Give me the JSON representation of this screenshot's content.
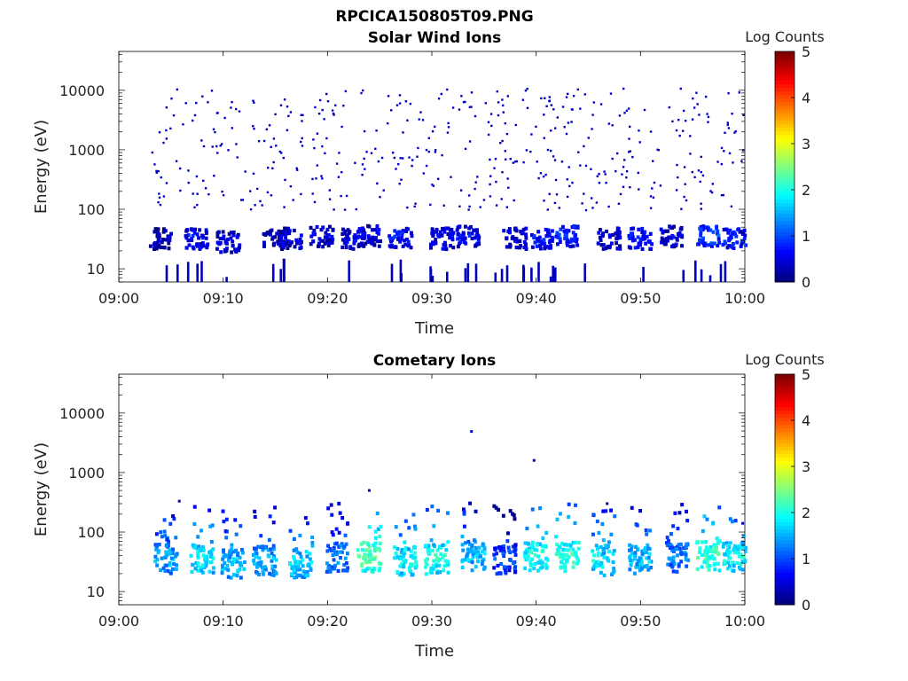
{
  "figure_title": "RPCICA150805T09.PNG",
  "colorbar": {
    "label": "Log Counts",
    "ticks": [
      "0",
      "1",
      "2",
      "3",
      "4",
      "5"
    ],
    "range": [
      0,
      5
    ],
    "colormap": "jet"
  },
  "chart_data": [
    {
      "type": "heatmap",
      "title": "Solar Wind Ions",
      "xlabel": "Time",
      "ylabel": "Energy (eV)",
      "yscale": "log",
      "xlim": [
        "09:00",
        "10:00"
      ],
      "ylim": [
        6,
        45000
      ],
      "x_ticks": [
        "09:00",
        "09:10",
        "09:20",
        "09:30",
        "09:40",
        "09:50",
        "10:00"
      ],
      "y_ticks": [
        "10",
        "100",
        "1000",
        "10000"
      ],
      "blobs": [
        {
          "t": "09:04",
          "e": 32,
          "level": 0.6
        },
        {
          "t": "09:07.5",
          "e": 32,
          "level": 0.9
        },
        {
          "t": "09:10.5",
          "e": 28,
          "level": 0.7
        },
        {
          "t": "09:15",
          "e": 32,
          "level": 0.6
        },
        {
          "t": "09:16.5",
          "e": 32,
          "level": 0.8
        },
        {
          "t": "09:19.5",
          "e": 35,
          "level": 0.8
        },
        {
          "t": "09:22.5",
          "e": 32,
          "level": 0.8
        },
        {
          "t": "09:24",
          "e": 35,
          "level": 0.8
        },
        {
          "t": "09:27",
          "e": 32,
          "level": 1.0
        },
        {
          "t": "09:31",
          "e": 32,
          "level": 0.8
        },
        {
          "t": "09:33.5",
          "e": 35,
          "level": 0.9
        },
        {
          "t": "09:38",
          "e": 32,
          "level": 0.8
        },
        {
          "t": "09:40.5",
          "e": 32,
          "level": 1.0
        },
        {
          "t": "09:43",
          "e": 35,
          "level": 1.1
        },
        {
          "t": "09:47",
          "e": 32,
          "level": 0.8
        },
        {
          "t": "09:50",
          "e": 32,
          "level": 1.0
        },
        {
          "t": "09:53",
          "e": 35,
          "level": 0.8
        },
        {
          "t": "09:56.5",
          "e": 35,
          "level": 1.2
        },
        {
          "t": "09:59",
          "e": 32,
          "level": 1.0
        }
      ]
    },
    {
      "type": "heatmap",
      "title": "Cometary Ions",
      "xlabel": "Time",
      "ylabel": "Energy (eV)",
      "yscale": "log",
      "xlim": [
        "09:00",
        "10:00"
      ],
      "ylim": [
        6,
        45000
      ],
      "x_ticks": [
        "09:00",
        "09:10",
        "09:20",
        "09:30",
        "09:40",
        "09:50",
        "10:00"
      ],
      "y_ticks": [
        "10",
        "100",
        "1000",
        "10000"
      ],
      "blobs": [
        {
          "t": "09:04.5",
          "e": 35,
          "level": 1.8
        },
        {
          "t": "09:08",
          "e": 35,
          "level": 2.1
        },
        {
          "t": "09:11",
          "e": 30,
          "level": 1.9
        },
        {
          "t": "09:14",
          "e": 33,
          "level": 1.8
        },
        {
          "t": "09:17.5",
          "e": 30,
          "level": 2.0
        },
        {
          "t": "09:21",
          "e": 38,
          "level": 1.6
        },
        {
          "t": "09:24",
          "e": 38,
          "level": 2.6
        },
        {
          "t": "09:27.5",
          "e": 33,
          "level": 2.2
        },
        {
          "t": "09:30.5",
          "e": 35,
          "level": 2.3
        },
        {
          "t": "09:34",
          "e": 40,
          "level": 1.9
        },
        {
          "t": "09:37",
          "e": 35,
          "level": 1.3
        },
        {
          "t": "09:40",
          "e": 38,
          "level": 2.3
        },
        {
          "t": "09:43",
          "e": 38,
          "level": 2.4
        },
        {
          "t": "09:46.5",
          "e": 33,
          "level": 2.1
        },
        {
          "t": "09:50",
          "e": 35,
          "level": 1.9
        },
        {
          "t": "09:53.5",
          "e": 38,
          "level": 1.6
        },
        {
          "t": "09:56.5",
          "e": 40,
          "level": 2.5
        },
        {
          "t": "09:59",
          "e": 38,
          "level": 2.2
        }
      ],
      "isolated_points": [
        {
          "t": "09:05.8",
          "e": 330
        },
        {
          "t": "09:33.8",
          "e": 4900
        },
        {
          "t": "09:39.8",
          "e": 1600
        },
        {
          "t": "09:24",
          "e": 500
        },
        {
          "t": "09:46.8",
          "e": 300
        },
        {
          "t": "09:59.8",
          "e": 140
        }
      ]
    }
  ]
}
